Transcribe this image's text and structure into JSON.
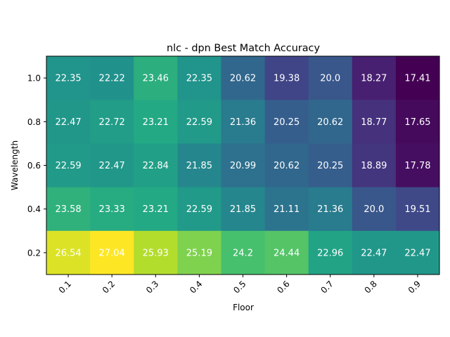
{
  "chart_data": {
    "type": "heatmap",
    "title": "nlc - dpn Best Match Accuracy",
    "xlabel": "Floor",
    "ylabel": "Wavelength",
    "x": [
      "0.1",
      "0.2",
      "0.3",
      "0.4",
      "0.5",
      "0.6",
      "0.7",
      "0.8",
      "0.9"
    ],
    "y": [
      "1.0",
      "0.8",
      "0.6",
      "0.4",
      "0.2"
    ],
    "values": [
      [
        22.35,
        22.22,
        23.46,
        22.35,
        20.62,
        19.38,
        20.0,
        18.27,
        17.41
      ],
      [
        22.47,
        22.72,
        23.21,
        22.59,
        21.36,
        20.25,
        20.62,
        18.77,
        17.65
      ],
      [
        22.59,
        22.47,
        22.84,
        21.85,
        20.99,
        20.62,
        20.25,
        18.89,
        17.78
      ],
      [
        23.58,
        23.33,
        23.21,
        22.59,
        21.85,
        21.11,
        21.36,
        20.0,
        19.51
      ],
      [
        26.54,
        27.04,
        25.93,
        25.19,
        24.2,
        24.44,
        22.96,
        22.47,
        22.47
      ]
    ],
    "value_labels": [
      [
        "22.35",
        "22.22",
        "23.46",
        "22.35",
        "20.62",
        "19.38",
        "20.0",
        "18.27",
        "17.41"
      ],
      [
        "22.47",
        "22.72",
        "23.21",
        "22.59",
        "21.36",
        "20.25",
        "20.62",
        "18.77",
        "17.65"
      ],
      [
        "22.59",
        "22.47",
        "22.84",
        "21.85",
        "20.99",
        "20.62",
        "20.25",
        "18.89",
        "17.78"
      ],
      [
        "23.58",
        "23.33",
        "23.21",
        "22.59",
        "21.85",
        "21.11",
        "21.36",
        "20.0",
        "19.51"
      ],
      [
        "26.54",
        "27.04",
        "25.93",
        "25.19",
        "24.2",
        "24.44",
        "22.96",
        "22.47",
        "22.47"
      ]
    ],
    "colormap": "viridis",
    "grid": false,
    "legend": "none"
  }
}
